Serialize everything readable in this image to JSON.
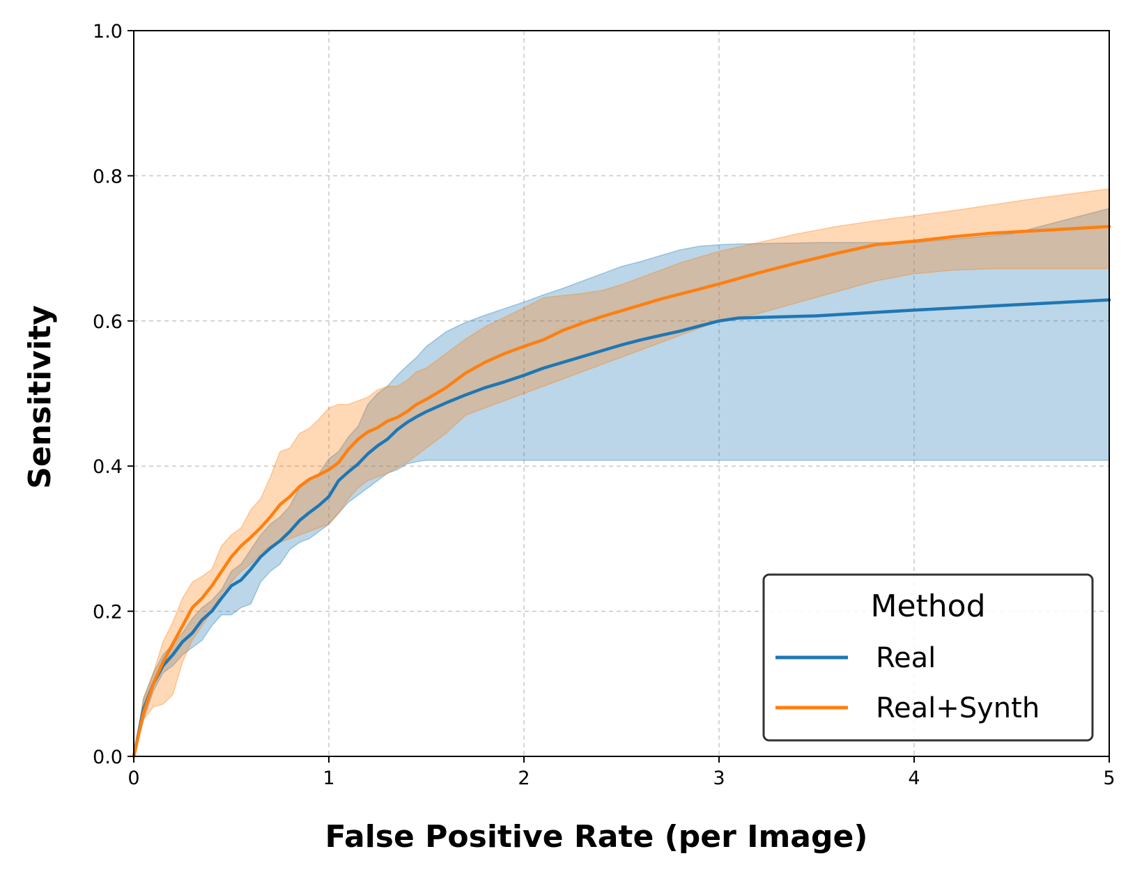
{
  "chart_data": {
    "type": "line",
    "title": "",
    "xlabel": "False Positive Rate (per Image)",
    "ylabel": "Sensitivity",
    "xlim": [
      0,
      5
    ],
    "ylim": [
      0,
      1.0
    ],
    "xticks": [
      0,
      1,
      2,
      3,
      4,
      5
    ],
    "xtick_labels": [
      "0",
      "1",
      "2",
      "3",
      "4",
      "5"
    ],
    "yticks": [
      0.0,
      0.2,
      0.4,
      0.6,
      0.8,
      1.0
    ],
    "ytick_labels": [
      "0.0",
      "0.2",
      "0.4",
      "0.6",
      "0.8",
      "1.0"
    ],
    "grid": true,
    "legend": {
      "title": "Method",
      "placement": "lower-right"
    },
    "series": [
      {
        "name": "Real",
        "color": "#1f77b4",
        "x": [
          0,
          0.05,
          0.1,
          0.15,
          0.2,
          0.25,
          0.3,
          0.35,
          0.4,
          0.45,
          0.5,
          0.55,
          0.6,
          0.65,
          0.7,
          0.75,
          0.8,
          0.85,
          0.9,
          0.95,
          1.0,
          1.05,
          1.1,
          1.15,
          1.2,
          1.25,
          1.3,
          1.35,
          1.4,
          1.45,
          1.5,
          1.6,
          1.7,
          1.8,
          1.9,
          2.0,
          2.1,
          2.2,
          2.3,
          2.4,
          2.5,
          2.6,
          2.7,
          2.8,
          2.9,
          3.0,
          3.1,
          3.5,
          4.0,
          4.5,
          5.0
        ],
        "y": [
          0,
          0.065,
          0.1,
          0.125,
          0.14,
          0.158,
          0.17,
          0.188,
          0.2,
          0.218,
          0.235,
          0.243,
          0.258,
          0.275,
          0.287,
          0.297,
          0.31,
          0.325,
          0.336,
          0.346,
          0.358,
          0.38,
          0.392,
          0.403,
          0.417,
          0.428,
          0.437,
          0.45,
          0.46,
          0.468,
          0.475,
          0.487,
          0.498,
          0.508,
          0.516,
          0.525,
          0.535,
          0.543,
          0.551,
          0.559,
          0.567,
          0.574,
          0.58,
          0.586,
          0.593,
          0.6,
          0.604,
          0.607,
          0.615,
          0.622,
          0.629
        ],
        "lower": [
          0,
          0.05,
          0.09,
          0.115,
          0.125,
          0.14,
          0.15,
          0.16,
          0.18,
          0.195,
          0.195,
          0.205,
          0.21,
          0.24,
          0.255,
          0.265,
          0.285,
          0.295,
          0.3,
          0.31,
          0.32,
          0.335,
          0.35,
          0.36,
          0.37,
          0.38,
          0.39,
          0.395,
          0.403,
          0.406,
          0.408,
          0.408,
          0.408,
          0.408,
          0.408,
          0.408,
          0.408,
          0.408,
          0.408,
          0.408,
          0.408,
          0.408,
          0.408,
          0.408,
          0.408,
          0.408,
          0.408,
          0.408,
          0.408,
          0.408,
          0.408
        ],
        "upper": [
          0,
          0.08,
          0.115,
          0.14,
          0.155,
          0.17,
          0.19,
          0.205,
          0.215,
          0.23,
          0.255,
          0.265,
          0.285,
          0.305,
          0.32,
          0.33,
          0.345,
          0.37,
          0.38,
          0.39,
          0.41,
          0.42,
          0.44,
          0.455,
          0.485,
          0.5,
          0.51,
          0.525,
          0.538,
          0.55,
          0.565,
          0.585,
          0.598,
          0.608,
          0.617,
          0.626,
          0.636,
          0.645,
          0.655,
          0.665,
          0.675,
          0.682,
          0.69,
          0.698,
          0.703,
          0.705,
          0.706,
          0.708,
          0.708,
          0.72,
          0.755
        ]
      },
      {
        "name": "Real+Synth",
        "color": "#ff7f0e",
        "x": [
          0,
          0.05,
          0.1,
          0.15,
          0.2,
          0.25,
          0.3,
          0.35,
          0.4,
          0.45,
          0.5,
          0.55,
          0.6,
          0.65,
          0.7,
          0.75,
          0.8,
          0.85,
          0.9,
          0.95,
          1.0,
          1.05,
          1.1,
          1.15,
          1.2,
          1.25,
          1.3,
          1.35,
          1.4,
          1.45,
          1.5,
          1.6,
          1.7,
          1.8,
          1.9,
          2.0,
          2.1,
          2.2,
          2.3,
          2.4,
          2.5,
          2.6,
          2.7,
          2.8,
          2.9,
          3.0,
          3.2,
          3.4,
          3.6,
          3.8,
          4.0,
          4.2,
          4.4,
          4.6,
          4.8,
          5.0
        ],
        "y": [
          0,
          0.06,
          0.1,
          0.13,
          0.155,
          0.18,
          0.205,
          0.218,
          0.235,
          0.255,
          0.275,
          0.29,
          0.302,
          0.315,
          0.33,
          0.347,
          0.358,
          0.372,
          0.382,
          0.388,
          0.395,
          0.405,
          0.423,
          0.437,
          0.447,
          0.453,
          0.462,
          0.467,
          0.475,
          0.485,
          0.492,
          0.508,
          0.528,
          0.543,
          0.555,
          0.565,
          0.574,
          0.587,
          0.597,
          0.606,
          0.614,
          0.622,
          0.63,
          0.637,
          0.644,
          0.651,
          0.666,
          0.68,
          0.693,
          0.705,
          0.71,
          0.716,
          0.721,
          0.724,
          0.727,
          0.73
        ],
        "lower": [
          0,
          0.05,
          0.068,
          0.072,
          0.085,
          0.13,
          0.16,
          0.18,
          0.2,
          0.225,
          0.24,
          0.255,
          0.265,
          0.28,
          0.29,
          0.295,
          0.3,
          0.305,
          0.31,
          0.315,
          0.32,
          0.335,
          0.355,
          0.37,
          0.38,
          0.385,
          0.39,
          0.398,
          0.405,
          0.415,
          0.425,
          0.445,
          0.47,
          0.48,
          0.49,
          0.5,
          0.51,
          0.52,
          0.53,
          0.54,
          0.55,
          0.56,
          0.57,
          0.58,
          0.59,
          0.6,
          0.61,
          0.625,
          0.64,
          0.655,
          0.665,
          0.67,
          0.672,
          0.672,
          0.672,
          0.672
        ],
        "upper": [
          0,
          0.08,
          0.115,
          0.158,
          0.185,
          0.218,
          0.24,
          0.248,
          0.258,
          0.29,
          0.305,
          0.315,
          0.34,
          0.355,
          0.385,
          0.42,
          0.425,
          0.445,
          0.452,
          0.465,
          0.48,
          0.485,
          0.485,
          0.49,
          0.495,
          0.505,
          0.51,
          0.51,
          0.518,
          0.53,
          0.535,
          0.555,
          0.575,
          0.592,
          0.605,
          0.618,
          0.632,
          0.635,
          0.638,
          0.642,
          0.65,
          0.66,
          0.67,
          0.68,
          0.688,
          0.696,
          0.708,
          0.72,
          0.73,
          0.738,
          0.745,
          0.752,
          0.76,
          0.768,
          0.775,
          0.782
        ]
      }
    ]
  }
}
